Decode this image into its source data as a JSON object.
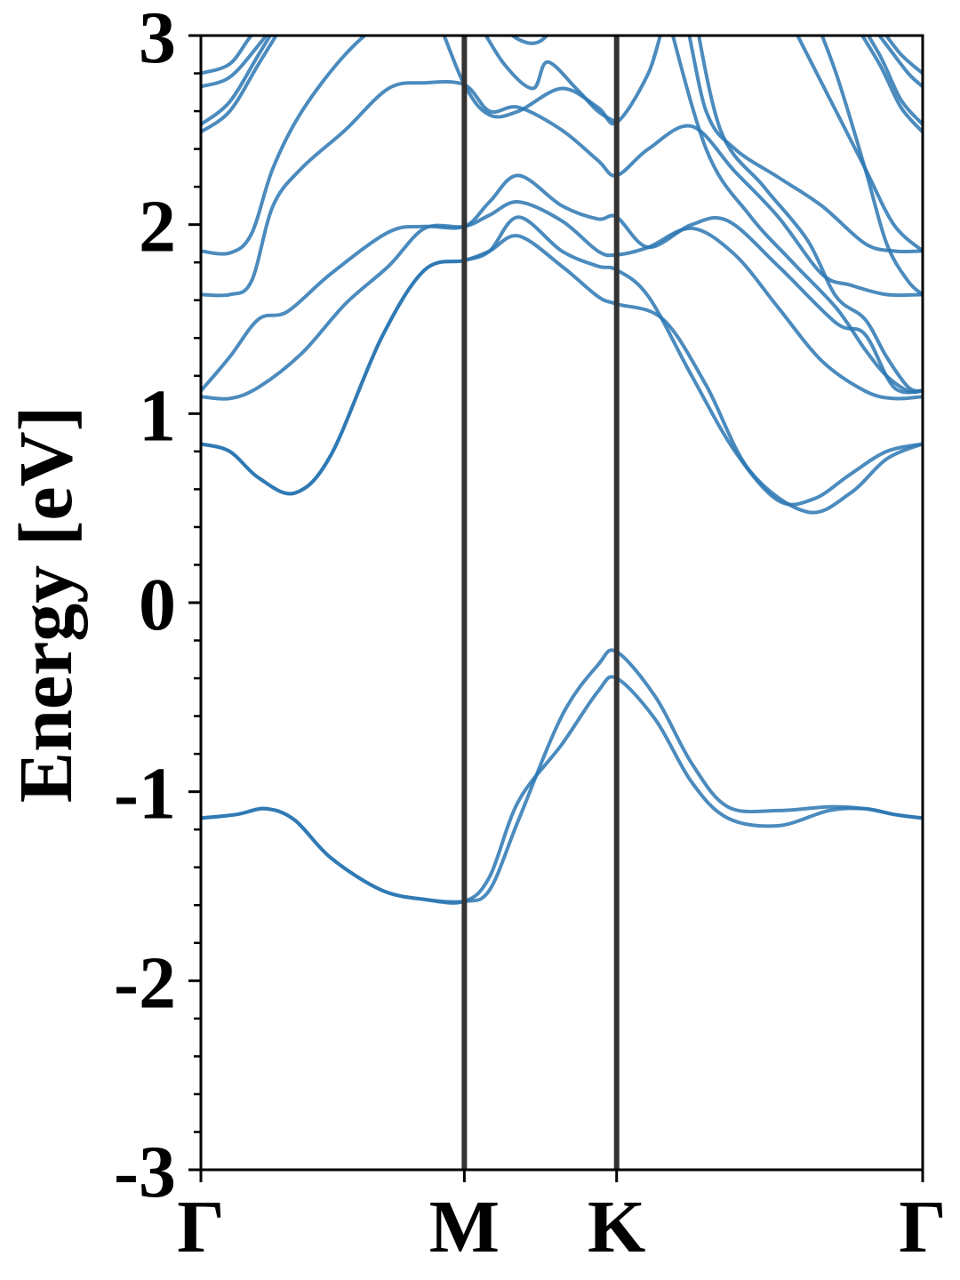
{
  "chart_data": {
    "type": "line",
    "ylabel": "Energy [eV]",
    "ylim": [
      -3,
      3
    ],
    "y_ticks": [
      3,
      2,
      1,
      0,
      -1,
      -2,
      -3
    ],
    "y_tick_labels": [
      "3",
      "2",
      "1",
      "0",
      "-1",
      "-2",
      "-3"
    ],
    "y_minor_step": 0.2,
    "xlim": [
      0,
      1
    ],
    "x_ticks": [
      {
        "pos": 0.0,
        "label": "Γ"
      },
      {
        "pos": 0.365,
        "label": "M"
      },
      {
        "pos": 0.576,
        "label": "K"
      },
      {
        "pos": 1.0,
        "label": "Γ"
      }
    ],
    "k_path_dividers": [
      0.365,
      0.576
    ],
    "band_color": "#2b77b3",
    "divider_color": "#333333",
    "bands": [
      {
        "x": [
          0,
          0.05,
          0.09,
          0.13,
          0.18,
          0.25,
          0.31,
          0.365,
          0.4,
          0.44,
          0.5,
          0.55,
          0.576,
          0.63,
          0.68,
          0.73,
          0.8,
          0.87,
          0.92,
          0.96,
          1.0
        ],
        "y": [
          -1.14,
          -1.12,
          -1.09,
          -1.15,
          -1.35,
          -1.52,
          -1.57,
          -1.58,
          -1.45,
          -1.05,
          -0.75,
          -0.47,
          -0.4,
          -0.62,
          -0.95,
          -1.14,
          -1.18,
          -1.1,
          -1.09,
          -1.12,
          -1.14
        ]
      },
      {
        "x": [
          0,
          0.05,
          0.09,
          0.13,
          0.18,
          0.25,
          0.31,
          0.365,
          0.4,
          0.44,
          0.5,
          0.55,
          0.576,
          0.63,
          0.68,
          0.73,
          0.8,
          0.87,
          0.92,
          0.96,
          1.0
        ],
        "y": [
          -1.14,
          -1.12,
          -1.09,
          -1.15,
          -1.35,
          -1.52,
          -1.57,
          -1.58,
          -1.52,
          -1.15,
          -0.6,
          -0.33,
          -0.26,
          -0.5,
          -0.85,
          -1.08,
          -1.1,
          -1.08,
          -1.09,
          -1.12,
          -1.14
        ]
      },
      {
        "x": [
          0,
          0.04,
          0.08,
          0.13,
          0.18,
          0.25,
          0.31,
          0.365,
          0.4,
          0.44,
          0.5,
          0.55,
          0.576,
          0.64,
          0.7,
          0.76,
          0.84,
          0.9,
          0.95,
          1.0
        ],
        "y": [
          0.84,
          0.8,
          0.66,
          0.58,
          0.78,
          1.4,
          1.76,
          1.81,
          1.86,
          1.94,
          1.78,
          1.62,
          1.58,
          1.5,
          1.15,
          0.7,
          0.48,
          0.58,
          0.76,
          0.84
        ]
      },
      {
        "x": [
          0,
          0.04,
          0.08,
          0.13,
          0.18,
          0.25,
          0.31,
          0.365,
          0.4,
          0.44,
          0.5,
          0.55,
          0.576,
          0.62,
          0.68,
          0.74,
          0.8,
          0.85,
          0.9,
          0.95,
          1.0
        ],
        "y": [
          0.84,
          0.8,
          0.66,
          0.58,
          0.78,
          1.4,
          1.76,
          1.81,
          1.86,
          2.04,
          1.86,
          1.78,
          1.76,
          1.62,
          1.2,
          0.8,
          0.54,
          0.55,
          0.68,
          0.8,
          0.84
        ]
      },
      {
        "x": [
          0,
          0.04,
          0.08,
          0.14,
          0.2,
          0.26,
          0.31,
          0.365,
          0.4,
          0.44,
          0.5,
          0.55,
          0.576,
          0.62,
          0.68,
          0.74,
          0.8,
          0.86,
          0.92,
          0.96,
          1.0
        ],
        "y": [
          1.09,
          1.08,
          1.14,
          1.32,
          1.58,
          1.78,
          1.98,
          1.99,
          2.05,
          2.12,
          2.02,
          1.86,
          1.84,
          1.88,
          1.98,
          1.84,
          1.56,
          1.28,
          1.12,
          1.08,
          1.09
        ]
      },
      {
        "x": [
          0,
          0.04,
          0.08,
          0.12,
          0.18,
          0.26,
          0.31,
          0.365,
          0.4,
          0.44,
          0.5,
          0.55,
          0.576,
          0.62,
          0.68,
          0.73,
          0.8,
          0.88,
          0.92,
          0.96,
          1.0
        ],
        "y": [
          1.12,
          1.3,
          1.5,
          1.54,
          1.74,
          1.96,
          1.99,
          1.99,
          2.12,
          2.26,
          2.1,
          2.03,
          2.04,
          1.88,
          2.0,
          2.02,
          1.78,
          1.48,
          1.42,
          1.14,
          1.12
        ]
      },
      {
        "x": [
          0,
          0.04,
          0.07,
          0.1,
          0.14,
          0.2,
          0.26,
          0.31,
          0.365,
          0.4,
          0.44,
          0.5,
          0.55,
          0.576,
          0.62,
          0.68,
          0.74,
          0.8,
          0.86,
          0.9,
          0.95,
          1.0
        ],
        "y": [
          1.63,
          1.63,
          1.7,
          2.1,
          2.3,
          2.5,
          2.72,
          2.75,
          2.74,
          2.6,
          2.62,
          2.5,
          2.34,
          2.26,
          2.4,
          2.52,
          2.28,
          2.04,
          1.74,
          1.68,
          1.63,
          1.63
        ]
      },
      {
        "x": [
          0,
          0.04,
          0.07,
          0.1,
          0.14,
          0.2,
          0.26,
          0.31,
          0.365,
          0.4,
          0.44,
          0.5,
          0.55,
          0.576,
          0.62,
          0.66,
          0.7,
          0.74,
          0.8,
          0.86,
          0.92,
          0.96,
          1.0
        ],
        "y": [
          1.86,
          1.85,
          1.95,
          2.3,
          2.6,
          2.9,
          3.1,
          3.2,
          2.74,
          2.58,
          2.6,
          2.72,
          2.62,
          2.54,
          2.8,
          3.2,
          2.6,
          2.4,
          2.25,
          2.1,
          1.9,
          1.86,
          1.86
        ]
      },
      {
        "x": [
          0,
          0.04,
          0.08,
          0.12,
          0.15
        ],
        "y": [
          2.49,
          2.6,
          2.85,
          3.1,
          3.3
        ]
      },
      {
        "x": [
          0,
          0.04,
          0.08,
          0.12,
          0.15
        ],
        "y": [
          2.53,
          2.65,
          2.9,
          3.15,
          3.35
        ]
      },
      {
        "x": [
          0,
          0.04,
          0.08,
          0.11
        ],
        "y": [
          2.73,
          2.78,
          2.95,
          3.1
        ]
      },
      {
        "x": [
          0,
          0.04,
          0.07,
          0.1
        ],
        "y": [
          2.8,
          2.85,
          3.0,
          3.1
        ]
      },
      {
        "x": [
          0.38,
          0.42,
          0.46,
          0.48,
          0.52,
          0.55,
          0.576
        ],
        "y": [
          3.1,
          2.85,
          2.72,
          2.86,
          2.72,
          2.6,
          2.54
        ]
      },
      {
        "x": [
          0.4,
          0.44,
          0.47,
          0.5
        ],
        "y": [
          3.1,
          2.98,
          2.97,
          3.1
        ]
      },
      {
        "x": [
          0.64,
          0.7,
          0.76,
          0.82,
          0.88,
          0.92,
          0.95,
          0.98,
          1.0
        ],
        "y": [
          3.2,
          2.4,
          2.05,
          1.8,
          1.56,
          1.34,
          1.2,
          1.12,
          1.12
        ]
      },
      {
        "x": [
          0.68,
          0.72,
          0.78,
          0.84,
          0.88,
          0.92,
          0.95,
          0.98,
          1.0
        ],
        "y": [
          3.2,
          2.5,
          2.2,
          1.92,
          1.62,
          1.5,
          1.3,
          1.14,
          1.12
        ]
      },
      {
        "x": [
          0.8,
          0.84,
          0.88,
          0.92,
          0.96,
          1.0
        ],
        "y": [
          3.2,
          2.9,
          2.6,
          2.3,
          2.0,
          1.86
        ]
      },
      {
        "x": [
          0.84,
          0.88,
          0.92,
          0.95,
          0.98,
          1.0
        ],
        "y": [
          3.2,
          2.8,
          2.3,
          1.9,
          1.7,
          1.63
        ]
      },
      {
        "x": [
          0.9,
          0.94,
          0.97,
          1.0
        ],
        "y": [
          3.1,
          2.85,
          2.62,
          2.49
        ]
      },
      {
        "x": [
          0.9,
          0.94,
          0.97,
          1.0
        ],
        "y": [
          3.15,
          2.9,
          2.66,
          2.53
        ]
      },
      {
        "x": [
          0.92,
          0.95,
          0.98,
          1.0
        ],
        "y": [
          3.1,
          2.95,
          2.8,
          2.73
        ]
      },
      {
        "x": [
          0.94,
          0.97,
          1.0
        ],
        "y": [
          3.05,
          2.9,
          2.8
        ]
      }
    ]
  }
}
